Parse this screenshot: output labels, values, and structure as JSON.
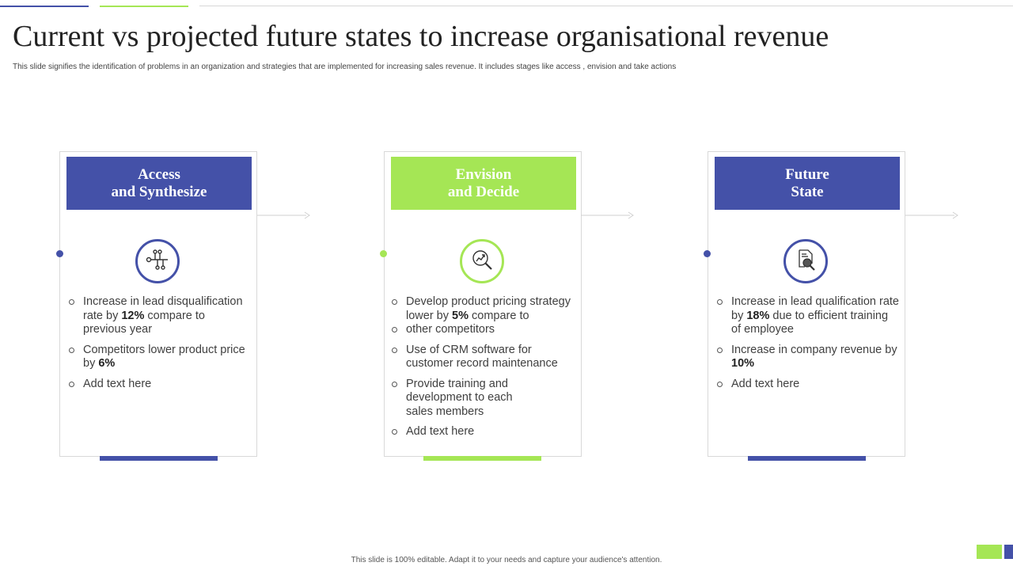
{
  "title": "Current vs projected future states to increase organisational revenue",
  "subtitle": "This slide signifies the identification of problems in  an organization and strategies that are implemented  for increasing sales revenue. It includes stages like  access , envision and take  actions",
  "colors": {
    "blue": "#4451a8",
    "green": "#a5e655",
    "border": "#d9d9d9"
  },
  "stages": [
    {
      "title": "Access\nand Synthesize",
      "color": "blue",
      "icon": "network-nodes-icon",
      "bullets": [
        {
          "pre": "Increase in lead disqualification rate by ",
          "bold": "12%",
          "post": " compare to previous year"
        },
        {
          "pre": "Competitors lower product price by ",
          "bold": "6%",
          "post": ""
        },
        {
          "pre": "Add text here",
          "bold": "",
          "post": ""
        }
      ]
    },
    {
      "title": "Envision\nand Decide",
      "color": "green",
      "icon": "growth-magnifier-icon",
      "bullets": [
        {
          "pre": "Develop product pricing strategy lower by ",
          "bold": "5%",
          "post": " compare to"
        },
        {
          "pre": "other competitors",
          "bold": "",
          "post": ""
        },
        {
          "pre": "Use of CRM software for customer record maintenance",
          "bold": "",
          "post": ""
        },
        {
          "pre": "Provide training and development to each sales members",
          "bold": "",
          "post": ""
        },
        {
          "pre": "Add text here",
          "bold": "",
          "post": ""
        }
      ]
    },
    {
      "title": "Future\nState",
      "color": "blue",
      "icon": "document-search-icon",
      "bullets": [
        {
          "pre": "Increase in lead qualification rate by ",
          "bold": "18%",
          "post": " due to efficient training of employee"
        },
        {
          "pre": "Increase in company revenue by ",
          "bold": "10%",
          "post": ""
        },
        {
          "pre": "Add text here",
          "bold": "",
          "post": ""
        }
      ]
    }
  ],
  "footer": "This slide is 100% editable.  Adapt it to your needs and capture your audience's attention."
}
